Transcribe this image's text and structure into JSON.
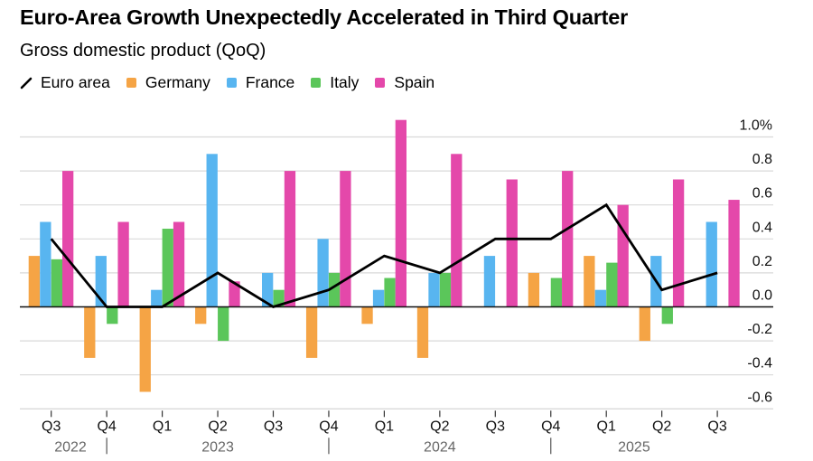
{
  "chart_data": {
    "type": "bar",
    "title": "Euro-Area Growth Unexpectedly Accelerated in Third Quarter",
    "subtitle": "Gross domestic product (QoQ)",
    "xlabel": "",
    "ylabel": "",
    "ylim": [
      -0.6,
      1.0
    ],
    "yticks": [
      1.0,
      0.8,
      0.6,
      0.4,
      0.2,
      0.0,
      -0.2,
      -0.4,
      -0.6
    ],
    "ytick_labels": [
      "1.0%",
      "0.8",
      "0.6",
      "0.4",
      "0.2",
      "0.0",
      "-0.2",
      "-0.4",
      "-0.6"
    ],
    "grid": true,
    "legend_position": "top-left",
    "categories": [
      "Q3",
      "Q4",
      "Q1",
      "Q2",
      "Q3",
      "Q4",
      "Q1",
      "Q2",
      "Q3",
      "Q4",
      "Q1",
      "Q2",
      "Q3"
    ],
    "years": [
      {
        "label": "2022",
        "start": 0,
        "end": 1
      },
      {
        "label": "2023",
        "start": 1,
        "end": 5
      },
      {
        "label": "2024",
        "start": 5,
        "end": 9
      },
      {
        "label": "2025",
        "start": 9,
        "end": 13
      }
    ],
    "series": [
      {
        "name": "Germany",
        "type": "bar",
        "color": "#F5A445",
        "values": [
          0.3,
          -0.3,
          -0.5,
          -0.1,
          0.0,
          -0.3,
          -0.1,
          -0.3,
          0.0,
          0.2,
          0.3,
          -0.2,
          null
        ]
      },
      {
        "name": "France",
        "type": "bar",
        "color": "#58B5F0",
        "values": [
          0.5,
          0.3,
          0.1,
          0.9,
          0.2,
          0.4,
          0.1,
          0.2,
          0.3,
          0.0,
          0.1,
          0.3,
          0.5
        ]
      },
      {
        "name": "Italy",
        "type": "bar",
        "color": "#5BC65A",
        "values": [
          0.28,
          -0.1,
          0.46,
          -0.2,
          0.1,
          0.2,
          0.17,
          0.2,
          0.0,
          0.17,
          0.26,
          -0.1,
          null
        ]
      },
      {
        "name": "Spain",
        "type": "bar",
        "color": "#E448AA",
        "values": [
          0.8,
          0.5,
          0.5,
          0.15,
          0.8,
          0.8,
          1.1,
          0.9,
          0.75,
          0.8,
          0.6,
          0.75,
          0.63
        ]
      },
      {
        "name": "Euro area",
        "type": "line",
        "color": "#000000",
        "values": [
          0.4,
          0.0,
          0.0,
          0.2,
          0.0,
          0.1,
          0.3,
          0.2,
          0.4,
          0.4,
          0.6,
          0.1,
          0.2
        ]
      }
    ]
  },
  "legend": [
    {
      "label": "Euro area",
      "kind": "line",
      "color": "#000000"
    },
    {
      "label": "Germany",
      "kind": "box",
      "color": "#F5A445"
    },
    {
      "label": "France",
      "kind": "box",
      "color": "#58B5F0"
    },
    {
      "label": "Italy",
      "kind": "box",
      "color": "#5BC65A"
    },
    {
      "label": "Spain",
      "kind": "box",
      "color": "#E448AA"
    }
  ]
}
